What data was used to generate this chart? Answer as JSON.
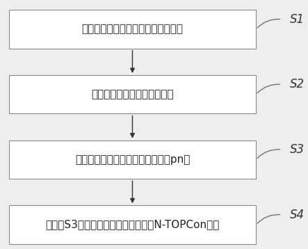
{
  "boxes": [
    {
      "text": "对硅片进行磷扩散以吸附硅片的杂质",
      "label": "S1"
    },
    {
      "text": "去除硅片表面形成的磷硅玻璃",
      "label": "S2"
    },
    {
      "text": "对硅片依次进行制绒、硼扩散形成pn结",
      "label": "S3"
    },
    {
      "text": "对步骤S3得到的硅片进行后处理制得N-TOPCon电池",
      "label": "S4"
    }
  ],
  "box_facecolor": "#ffffff",
  "box_edgecolor": "#888888",
  "arrow_color": "#333333",
  "label_color": "#333333",
  "bg_color": "#eeeeee",
  "font_size_box": 11,
  "font_size_label": 12,
  "line_width": 0.8
}
